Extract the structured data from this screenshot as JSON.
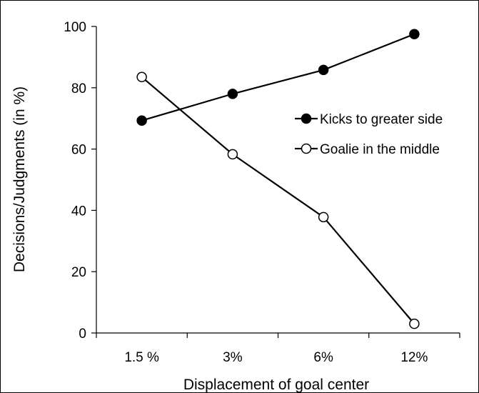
{
  "chart_data": {
    "type": "line",
    "categories": [
      "1.5 %",
      "3%",
      "6%",
      "12%"
    ],
    "series": [
      {
        "name": "Kicks to greater side",
        "values": [
          69.3,
          78.0,
          85.8,
          97.5
        ],
        "marker": "filled-circle",
        "color": "#000000"
      },
      {
        "name": "Goalie in the middle",
        "values": [
          83.5,
          58.3,
          37.8,
          3.0
        ],
        "marker": "open-circle",
        "color": "#000000"
      }
    ],
    "title": "",
    "xlabel": "Displacement  of goal center",
    "ylabel": "Decisions/Judgments (in %)",
    "ylim": [
      0,
      100
    ],
    "yticks": [
      0,
      20,
      40,
      60,
      80,
      100
    ],
    "grid": false,
    "legend_position": "right"
  }
}
